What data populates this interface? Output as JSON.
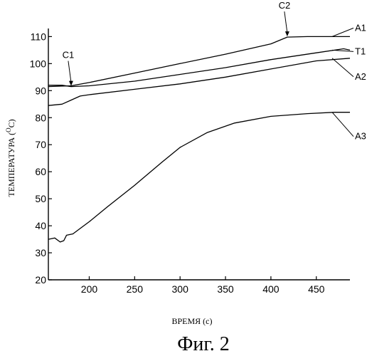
{
  "chart_data": {
    "type": "line",
    "title": "",
    "xlabel": "ВРЕМЯ (с)",
    "ylabel_main": "ТЕМПЕРАТУРА (",
    "ylabel_sup": "O",
    "ylabel_end": "C)",
    "xlim": [
      155,
      487
    ],
    "ylim": [
      20,
      113
    ],
    "x_ticks": [
      200,
      250,
      300,
      350,
      400,
      450
    ],
    "y_ticks": [
      20,
      30,
      40,
      50,
      60,
      70,
      80,
      90,
      100,
      110
    ],
    "grid": false,
    "series": [
      {
        "name": "A1",
        "x": [
          155,
          180,
          200,
          250,
          300,
          350,
          400,
          418,
          440,
          487
        ],
        "y": [
          91.5,
          91.8,
          93,
          96.5,
          100,
          103.5,
          107.3,
          109.8,
          110,
          110
        ]
      },
      {
        "name": "T1",
        "x": [
          155,
          170,
          180,
          200,
          250,
          300,
          350,
          400,
          450,
          480,
          487
        ],
        "y": [
          92,
          92,
          91.5,
          91.8,
          93.5,
          96,
          98.5,
          101.5,
          104,
          105.5,
          105
        ]
      },
      {
        "name": "A2",
        "x": [
          155,
          170,
          180,
          190,
          200,
          250,
          300,
          350,
          400,
          450,
          487
        ],
        "y": [
          84.5,
          85,
          86.5,
          88,
          88.5,
          90.5,
          92.5,
          95,
          98,
          101,
          102
        ]
      },
      {
        "name": "A3",
        "x": [
          155,
          162,
          168,
          172,
          175,
          182,
          190,
          200,
          220,
          250,
          280,
          300,
          330,
          360,
          400,
          440,
          470,
          487
        ],
        "y": [
          35,
          35.5,
          34,
          34.5,
          36.5,
          37,
          39,
          41.5,
          47,
          55,
          63.5,
          69,
          74.5,
          78,
          80.5,
          81.5,
          82,
          82
        ]
      }
    ],
    "annotations": [
      {
        "text": "C1",
        "x": 180,
        "y": 91.5
      },
      {
        "text": "C2",
        "x": 418,
        "y": 109.8
      }
    ]
  },
  "caption": "Фиг. 2"
}
